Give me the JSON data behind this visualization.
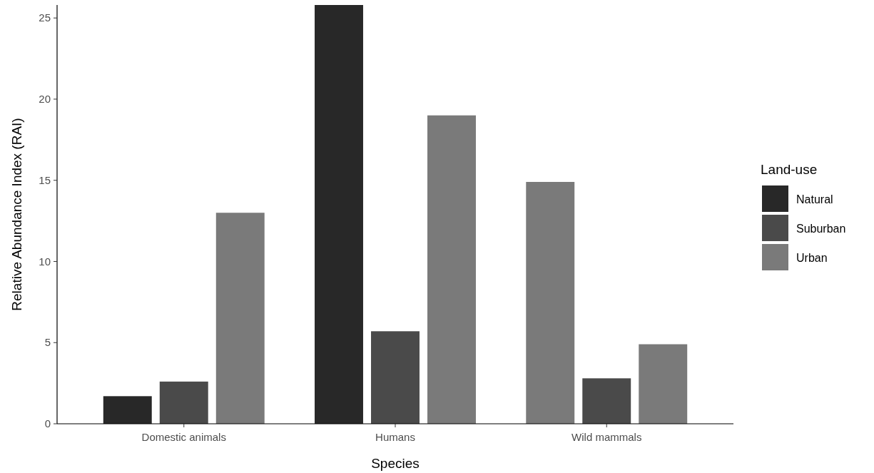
{
  "chart_data": {
    "type": "bar",
    "xlabel": "Species",
    "ylabel": "Relative Abundance Index (RAI)",
    "legend_title": "Land-use",
    "categories": [
      "Domestic animals",
      "Humans",
      "Wild mammals"
    ],
    "series": [
      {
        "name": "Natural",
        "color": "#282828",
        "colors": [
          "#282828",
          "#282828",
          "#7a7a7a"
        ],
        "values": [
          1.7,
          25.8,
          14.9
        ]
      },
      {
        "name": "Suburban",
        "color": "#4a4a4a",
        "values": [
          2.6,
          5.7,
          2.8
        ]
      },
      {
        "name": "Urban",
        "color": "#7a7a7a",
        "values": [
          13.0,
          19.0,
          4.9
        ]
      }
    ],
    "ylim": [
      0,
      25.8
    ],
    "yticks": [
      0,
      5,
      10,
      15,
      20,
      25
    ],
    "grid": false,
    "legend": "right"
  }
}
